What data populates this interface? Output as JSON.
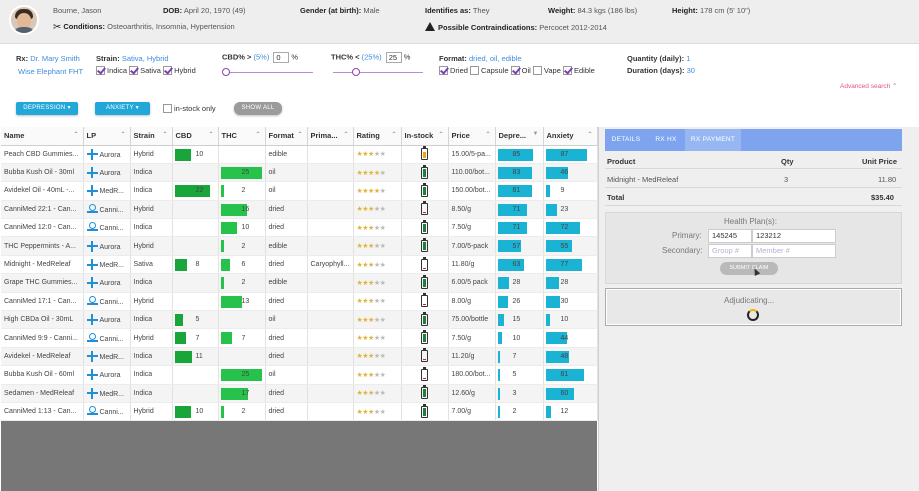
{
  "patient": {
    "name": "Bourne, Jason",
    "dob_label": "DOB:",
    "dob": "April 20, 1970 (49)",
    "gender_label": "Gender (at birth):",
    "gender": "Male",
    "identifies_label": "Identifies as:",
    "identifies": "They",
    "weight_label": "Weight:",
    "weight": "84.3 kgs (186 lbs)",
    "height_label": "Height:",
    "height": "178 cm (5' 10\")",
    "conditions_label": "Conditions:",
    "conditions": "Osteoarthritis, Insomnia, Hypertension",
    "contra_label": "Possible Contraindications:",
    "contra": "Percocet 2012-2014"
  },
  "filters": {
    "rx_label": "Rx:",
    "rx_doctor": "Dr. Mary Smith",
    "rx_clinic": "Wise Elephant FHT",
    "strain_label": "Strain:",
    "strain_value": "Sativa, Hybrid",
    "strain_options": [
      "Indica",
      "Sativa",
      "Hybrid"
    ],
    "cbd_label": "CBD% >",
    "cbd_pct": "(5%)",
    "cbd_value": "0",
    "cbd_unit": "%",
    "thc_label": "THC% <",
    "thc_pct": "(25%)",
    "thc_value": "25",
    "thc_unit": "%",
    "format_label": "Format:",
    "format_value": "dried, oil, edible",
    "format_options": [
      "Dried",
      "Capsule",
      "Oil",
      "Vape",
      "Edible"
    ],
    "format_checked": [
      true,
      false,
      true,
      false,
      true
    ],
    "qty_label": "Quantity (daily):",
    "qty_value": "1",
    "duration_label": "Duration (days):",
    "duration_value": "30",
    "advanced": "Advanced search",
    "depression_btn": "DEPRESSION ▾",
    "anxiety_btn": "ANXIETY ▾",
    "instock_label": "in-stock only",
    "showall_btn": "SHOW ALL"
  },
  "table": {
    "headers": [
      "Name",
      "LP",
      "Strain",
      "CBD",
      "THC",
      "Format",
      "Prima...",
      "Rating",
      "In-stock",
      "Price",
      "Depre...",
      "Anxiety"
    ],
    "rows": [
      {
        "name": "Peach CBD Gummies...",
        "lp": "Aurora",
        "lpicon": "aurora",
        "strain": "Hybrid",
        "cbd": "10",
        "thc": "",
        "format": "edible",
        "prim": "",
        "rating": 3,
        "stock": "low",
        "price": "15.00/5-pa...",
        "dep": "85",
        "anx": "87"
      },
      {
        "name": "Bubba Kush Oil - 30ml",
        "lp": "Aurora",
        "lpicon": "aurora",
        "strain": "Indica",
        "cbd": "",
        "thc": "25",
        "format": "oil",
        "prim": "",
        "rating": 4,
        "stock": "full",
        "price": "110.00/bot...",
        "dep": "83",
        "anx": "46"
      },
      {
        "name": "Avidekel Oil - 40mL -...",
        "lp": "MedR...",
        "lpicon": "aurora",
        "strain": "Indica",
        "cbd": "22",
        "thc": "2",
        "format": "oil",
        "prim": "",
        "rating": 4,
        "stock": "full",
        "price": "150.00/bot...",
        "dep": "81",
        "anx": "9"
      },
      {
        "name": "CanniMed 22:1 - Can...",
        "lp": "Canni...",
        "lpicon": "cannimed",
        "strain": "Hybrid",
        "cbd": "",
        "thc": "16",
        "format": "dried",
        "prim": "",
        "rating": 3,
        "stock": "empty",
        "price": "8.50/g",
        "dep": "71",
        "anx": "23"
      },
      {
        "name": "CanniMed 12:0 - Can...",
        "lp": "Canni...",
        "lpicon": "cannimed",
        "strain": "Indica",
        "cbd": "",
        "thc": "10",
        "format": "dried",
        "prim": "",
        "rating": 3,
        "stock": "full",
        "price": "7.50/g",
        "dep": "71",
        "anx": "72"
      },
      {
        "name": "THC Peppermints - A...",
        "lp": "Aurora",
        "lpicon": "aurora",
        "strain": "Hybrid",
        "cbd": "",
        "thc": "2",
        "format": "edible",
        "prim": "",
        "rating": 3,
        "stock": "full",
        "price": "7.00/5-pack",
        "dep": "57",
        "anx": "55"
      },
      {
        "name": "Midnight - MedReleaf",
        "lp": "MedR...",
        "lpicon": "aurora",
        "strain": "Sativa",
        "cbd": "8",
        "thc": "6",
        "format": "dried",
        "prim": "Caryophyll...",
        "rating": 3,
        "stock": "empty",
        "price": "11.80/g",
        "dep": "63",
        "anx": "77"
      },
      {
        "name": "Grape THC Gummies...",
        "lp": "Aurora",
        "lpicon": "aurora",
        "strain": "Indica",
        "cbd": "",
        "thc": "2",
        "format": "edible",
        "prim": "",
        "rating": 3,
        "stock": "full",
        "price": "6.00/5 pack",
        "dep": "28",
        "anx": "28"
      },
      {
        "name": "CanniMed 17:1 - Can...",
        "lp": "Canni...",
        "lpicon": "cannimed",
        "strain": "Hybrid",
        "cbd": "",
        "thc": "13",
        "format": "dried",
        "prim": "",
        "rating": 3,
        "stock": "empty",
        "price": "8.00/g",
        "dep": "26",
        "anx": "30"
      },
      {
        "name": "High CBDa Oil - 30mL",
        "lp": "Aurora",
        "lpicon": "aurora",
        "strain": "Indica",
        "cbd": "5",
        "thc": "",
        "format": "oil",
        "prim": "",
        "rating": 3,
        "stock": "full",
        "price": "75.00/bottle",
        "dep": "15",
        "anx": "10"
      },
      {
        "name": "CanniMed 9:9 - Canni...",
        "lp": "Canni...",
        "lpicon": "cannimed",
        "strain": "Hybrid",
        "cbd": "7",
        "thc": "7",
        "format": "dried",
        "prim": "",
        "rating": 3,
        "stock": "full",
        "price": "7.50/g",
        "dep": "10",
        "anx": "44"
      },
      {
        "name": "Avidekel - MedReleaf",
        "lp": "MedR...",
        "lpicon": "aurora",
        "strain": "Indica",
        "cbd": "11",
        "thc": "",
        "format": "dried",
        "prim": "",
        "rating": 3,
        "stock": "empty",
        "price": "11.20/g",
        "dep": "7",
        "anx": "48"
      },
      {
        "name": "Bubba Kush Oil - 60ml",
        "lp": "Aurora",
        "lpicon": "aurora",
        "strain": "Indica",
        "cbd": "",
        "thc": "25",
        "format": "oil",
        "prim": "",
        "rating": 3,
        "stock": "empty",
        "price": "180.00/bot...",
        "dep": "5",
        "anx": "81"
      },
      {
        "name": "Sedamen - MedReleaf",
        "lp": "MedR...",
        "lpicon": "aurora",
        "strain": "Indica",
        "cbd": "",
        "thc": "17",
        "format": "dried",
        "prim": "",
        "rating": 3,
        "stock": "full",
        "price": "12.60/g",
        "dep": "3",
        "anx": "60"
      },
      {
        "name": "CanniMed 1:13 - Can...",
        "lp": "Canni...",
        "lpicon": "cannimed",
        "strain": "Hybrid",
        "cbd": "10",
        "thc": "2",
        "format": "dried",
        "prim": "",
        "rating": 3,
        "stock": "full",
        "price": "7.00/g",
        "dep": "2",
        "anx": "12"
      }
    ]
  },
  "colors": {
    "cbd_bar": "#18a63a",
    "thc_bar": "#27c24c",
    "score_bar": "#1ab3d4",
    "tab_bg": "#7ea4ef"
  },
  "rpanel": {
    "tabs": [
      "DETAILS",
      "RX HX",
      "RX PAYMENT"
    ],
    "col_product": "Product",
    "col_qty": "Qty",
    "col_price": "Unit Price",
    "item_name": "Midnight - MedReleaf",
    "item_qty": "3",
    "item_price": "11.80",
    "total_label": "Total",
    "total_value": "$35.40",
    "hp_title": "Health Plan(s):",
    "primary_label": "Primary:",
    "primary_group": "145245",
    "primary_member": "123212",
    "secondary_label": "Secondary:",
    "secondary_group_ph": "Group #",
    "secondary_member_ph": "Member #",
    "submit_btn": "SUBMIT CLAIM",
    "adjudicating": "Adjudicating..."
  }
}
